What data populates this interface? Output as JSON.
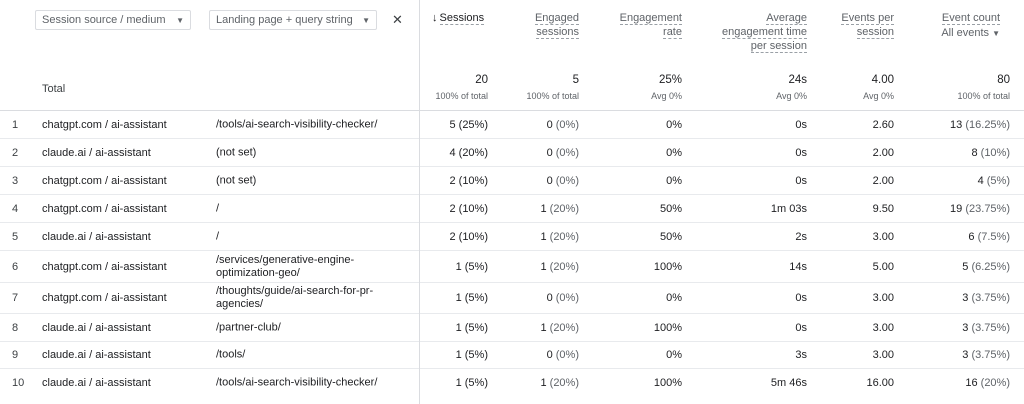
{
  "dimensions": {
    "primary": "Session source / medium",
    "secondary": "Landing page + query string",
    "remove": "✕"
  },
  "columns": [
    {
      "label": "Sessions",
      "sort": "↓"
    },
    {
      "label": "Engaged sessions"
    },
    {
      "label": "Engagement rate"
    },
    {
      "label": "Average engagement time per session"
    },
    {
      "label": "Events per session"
    },
    {
      "label": "Event count",
      "filter": "All events"
    }
  ],
  "totals": {
    "label": "Total",
    "sessions": {
      "value": "20",
      "sub": "100% of total"
    },
    "engaged": {
      "value": "5",
      "sub": "100% of total"
    },
    "rate": {
      "value": "25%",
      "sub": "Avg 0%"
    },
    "avgtime": {
      "value": "24s",
      "sub": "Avg 0%"
    },
    "eps": {
      "value": "4.00",
      "sub": "Avg 0%"
    },
    "events": {
      "value": "80",
      "sub": "100% of total"
    }
  },
  "rows": [
    {
      "idx": "1",
      "src": "chatgpt.com / ai-assistant",
      "page": "/tools/ai-search-visibility-checker/",
      "s": "5",
      "sp": "(25%)",
      "e": "0",
      "ep": "(0%)",
      "r": "0%",
      "t": "0s",
      "eps": "2.60",
      "ev": "13",
      "evp": "(16.25%)"
    },
    {
      "idx": "2",
      "src": "claude.ai / ai-assistant",
      "page": "(not set)",
      "s": "4",
      "sp": "(20%)",
      "e": "0",
      "ep": "(0%)",
      "r": "0%",
      "t": "0s",
      "eps": "2.00",
      "ev": "8",
      "evp": "(10%)"
    },
    {
      "idx": "3",
      "src": "chatgpt.com / ai-assistant",
      "page": "(not set)",
      "s": "2",
      "sp": "(10%)",
      "e": "0",
      "ep": "(0%)",
      "r": "0%",
      "t": "0s",
      "eps": "2.00",
      "ev": "4",
      "evp": "(5%)"
    },
    {
      "idx": "4",
      "src": "chatgpt.com / ai-assistant",
      "page": "/",
      "s": "2",
      "sp": "(10%)",
      "e": "1",
      "ep": "(20%)",
      "r": "50%",
      "t": "1m 03s",
      "eps": "9.50",
      "ev": "19",
      "evp": "(23.75%)"
    },
    {
      "idx": "5",
      "src": "claude.ai / ai-assistant",
      "page": "/",
      "s": "2",
      "sp": "(10%)",
      "e": "1",
      "ep": "(20%)",
      "r": "50%",
      "t": "2s",
      "eps": "3.00",
      "ev": "6",
      "evp": "(7.5%)"
    },
    {
      "idx": "6",
      "src": "chatgpt.com / ai-assistant",
      "page": "/services/generative-engine-optimization-geo/",
      "s": "1",
      "sp": "(5%)",
      "e": "1",
      "ep": "(20%)",
      "r": "100%",
      "t": "14s",
      "eps": "5.00",
      "ev": "5",
      "evp": "(6.25%)"
    },
    {
      "idx": "7",
      "src": "chatgpt.com / ai-assistant",
      "page": "/thoughts/guide/ai-search-for-pr-agencies/",
      "s": "1",
      "sp": "(5%)",
      "e": "0",
      "ep": "(0%)",
      "r": "0%",
      "t": "0s",
      "eps": "3.00",
      "ev": "3",
      "evp": "(3.75%)"
    },
    {
      "idx": "8",
      "src": "claude.ai / ai-assistant",
      "page": "/partner-club/",
      "s": "1",
      "sp": "(5%)",
      "e": "1",
      "ep": "(20%)",
      "r": "100%",
      "t": "0s",
      "eps": "3.00",
      "ev": "3",
      "evp": "(3.75%)"
    },
    {
      "idx": "9",
      "src": "claude.ai / ai-assistant",
      "page": "/tools/",
      "s": "1",
      "sp": "(5%)",
      "e": "0",
      "ep": "(0%)",
      "r": "0%",
      "t": "3s",
      "eps": "3.00",
      "ev": "3",
      "evp": "(3.75%)"
    },
    {
      "idx": "10",
      "src": "claude.ai / ai-assistant",
      "page": "/tools/ai-search-visibility-checker/",
      "s": "1",
      "sp": "(5%)",
      "e": "1",
      "ep": "(20%)",
      "r": "100%",
      "t": "5m 46s",
      "eps": "16.00",
      "ev": "16",
      "evp": "(20%)"
    }
  ]
}
